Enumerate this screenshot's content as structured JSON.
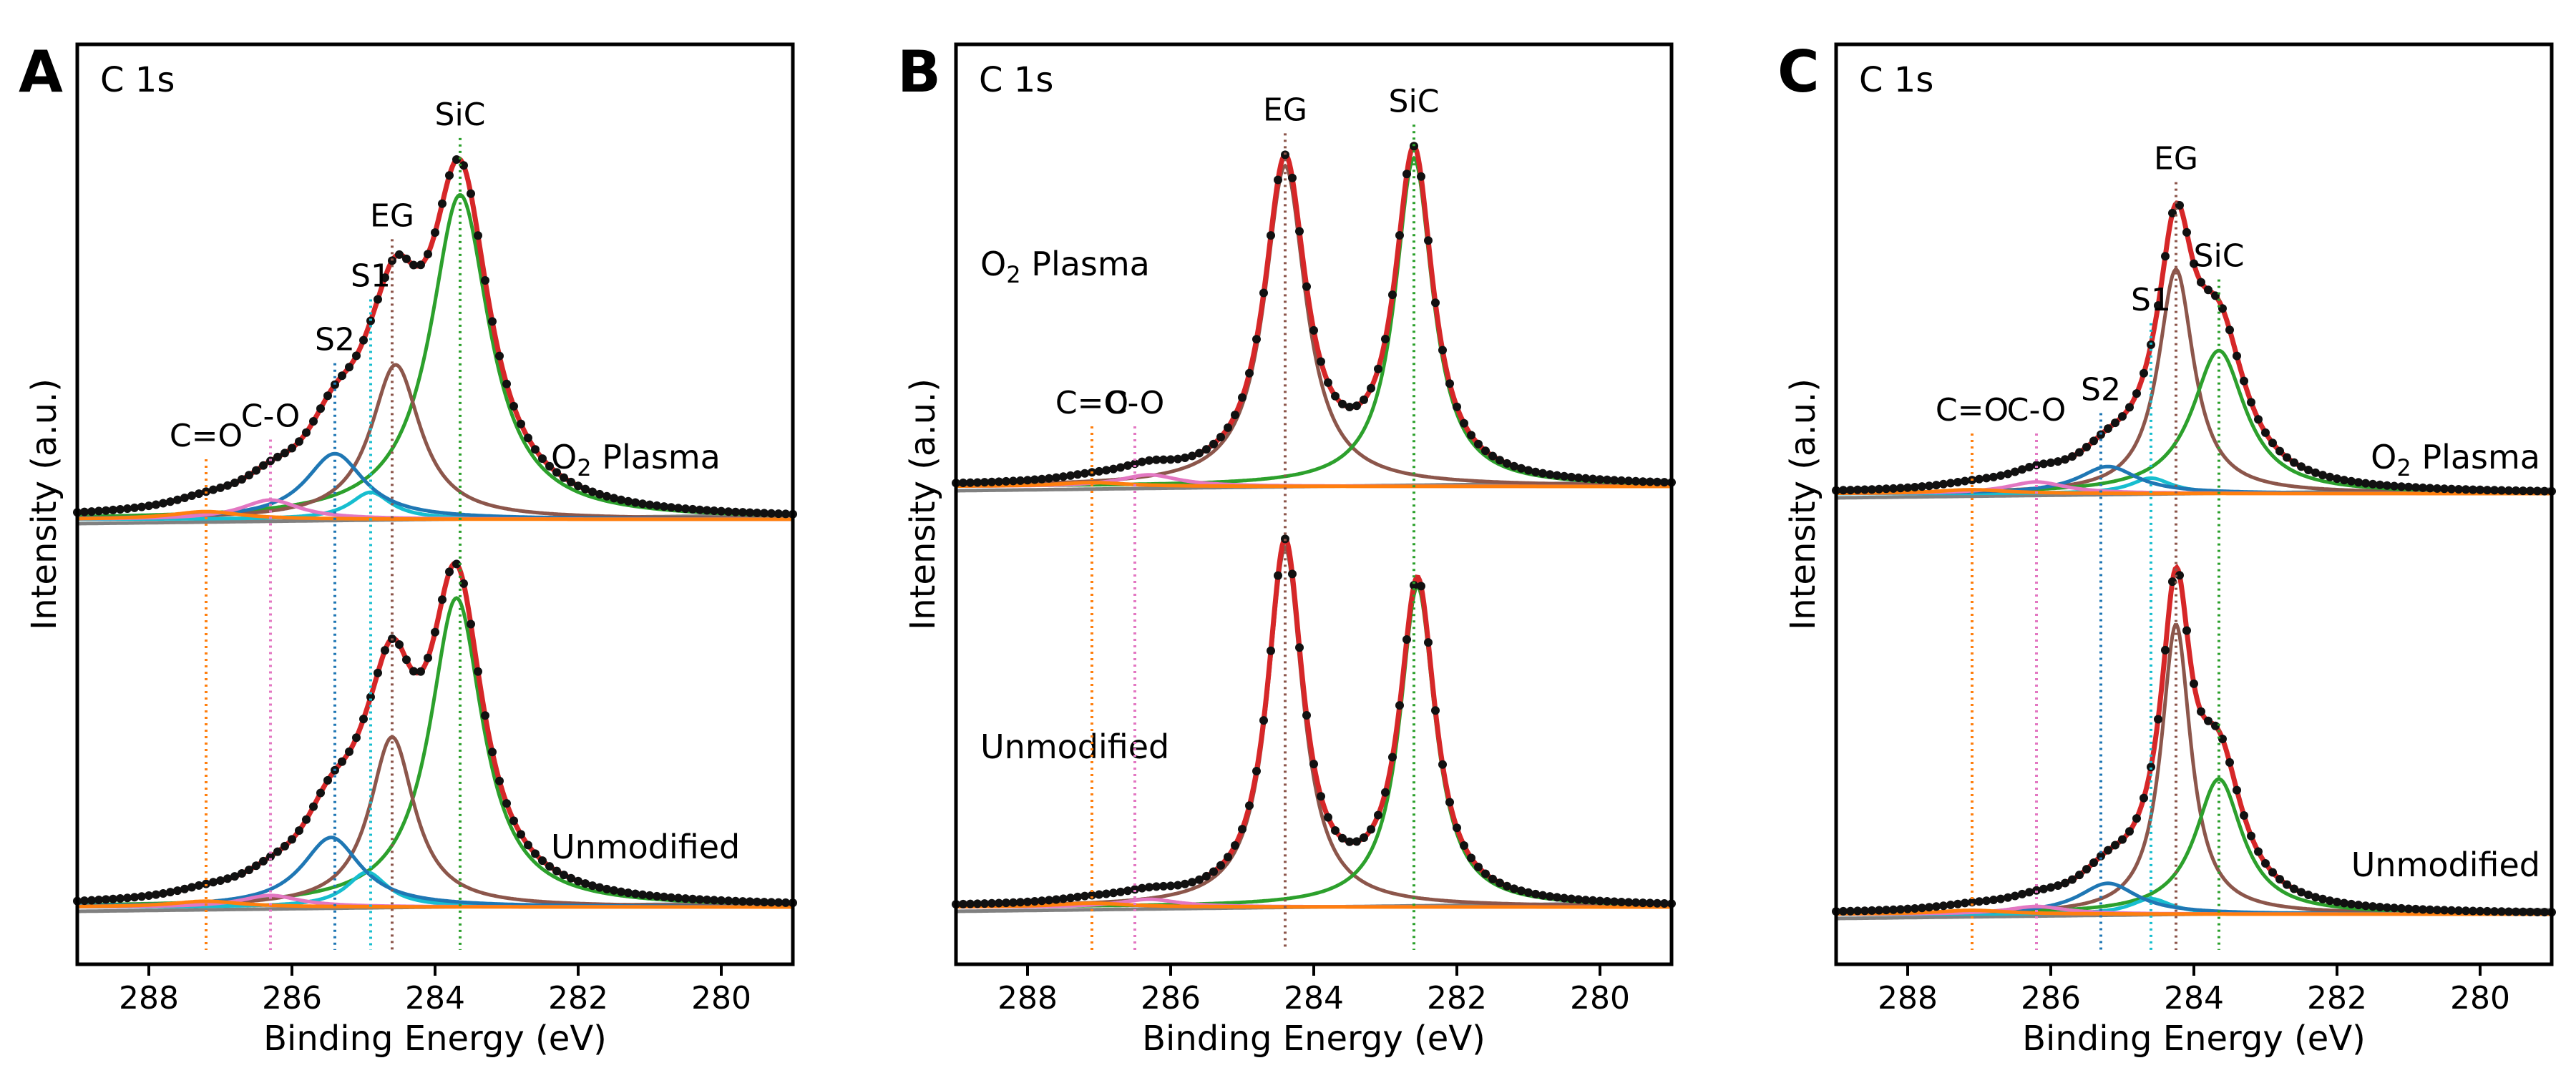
{
  "figure": {
    "x_label": "Binding Energy (eV)",
    "y_label": "Intensity (a.u.)",
    "x_ticks": [
      "288",
      "286",
      "284",
      "282",
      "280"
    ]
  },
  "chart_data": [
    {
      "type": "line",
      "panel_label": "A",
      "title": "C 1s",
      "xlabel": "Binding Energy (eV)",
      "ylabel": "Intensity (a.u.)",
      "xlim": [
        289,
        279
      ],
      "x_ticks": [
        288,
        286,
        284,
        282,
        280
      ],
      "reference_lines": [
        {
          "name": "C=O",
          "position": 287.2,
          "color": "#ff7f0e"
        },
        {
          "name": "C-O",
          "position": 286.3,
          "color": "#e377c2"
        },
        {
          "name": "S2",
          "position": 285.4,
          "color": "#1f77b4"
        },
        {
          "name": "S1",
          "position": 284.9,
          "color": "#17becf"
        },
        {
          "name": "EG",
          "position": 284.6,
          "color": "#8c564b"
        },
        {
          "name": "SiC",
          "position": 283.65,
          "color": "#2ca02c"
        }
      ],
      "spectra": [
        {
          "name": "O2 Plasma",
          "label_main": "O",
          "label_sub": "2",
          "label_tail": " Plasma",
          "components": [
            {
              "name": "SiC",
              "center": 283.65,
              "height": 0.84,
              "width": 0.5,
              "color": "#2ca02c"
            },
            {
              "name": "EG",
              "center": 284.55,
              "height": 0.4,
              "width": 0.42,
              "color": "#8c564b"
            },
            {
              "name": "S1",
              "center": 284.9,
              "height": 0.07,
              "width": 0.35,
              "color": "#17becf"
            },
            {
              "name": "S2",
              "center": 285.4,
              "height": 0.17,
              "width": 0.5,
              "color": "#1f77b4"
            },
            {
              "name": "C-O",
              "center": 286.3,
              "height": 0.05,
              "width": 0.5,
              "color": "#e377c2"
            },
            {
              "name": "C=O",
              "center": 287.2,
              "height": 0.02,
              "width": 0.6,
              "color": "#ff7f0e"
            }
          ]
        },
        {
          "name": "Unmodified",
          "label_main": "Unmodified",
          "label_sub": "",
          "label_tail": "",
          "components": [
            {
              "name": "SiC",
              "center": 283.7,
              "height": 0.8,
              "width": 0.45,
              "color": "#2ca02c"
            },
            {
              "name": "EG",
              "center": 284.6,
              "height": 0.44,
              "width": 0.38,
              "color": "#8c564b"
            },
            {
              "name": "S1",
              "center": 284.95,
              "height": 0.09,
              "width": 0.35,
              "color": "#17becf"
            },
            {
              "name": "S2",
              "center": 285.45,
              "height": 0.18,
              "width": 0.5,
              "color": "#1f77b4"
            },
            {
              "name": "C-O",
              "center": 286.3,
              "height": 0.03,
              "width": 0.5,
              "color": "#e377c2"
            },
            {
              "name": "C=O",
              "center": 287.2,
              "height": 0.015,
              "width": 0.6,
              "color": "#ff7f0e"
            }
          ]
        }
      ]
    },
    {
      "type": "line",
      "panel_label": "B",
      "title": "C 1s",
      "xlabel": "Binding Energy (eV)",
      "ylabel": "Intensity (a.u.)",
      "xlim": [
        289,
        279
      ],
      "x_ticks": [
        288,
        286,
        284,
        282,
        280
      ],
      "reference_lines": [
        {
          "name": "C=O",
          "position": 287.1,
          "color": "#ff7f0e"
        },
        {
          "name": "C-O",
          "position": 286.5,
          "color": "#e377c2"
        },
        {
          "name": "EG",
          "position": 284.4,
          "color": "#8c564b"
        },
        {
          "name": "SiC",
          "position": 282.6,
          "color": "#2ca02c"
        }
      ],
      "spectra": [
        {
          "name": "O2 Plasma",
          "label_main": "O",
          "label_sub": "2",
          "label_tail": " Plasma",
          "components": [
            {
              "name": "EG",
              "center": 284.4,
              "height": 0.83,
              "width": 0.35,
              "color": "#8c564b"
            },
            {
              "name": "SiC",
              "center": 282.6,
              "height": 0.85,
              "width": 0.32,
              "color": "#2ca02c"
            },
            {
              "name": "C-O",
              "center": 286.3,
              "height": 0.03,
              "width": 0.5,
              "color": "#e377c2"
            },
            {
              "name": "C=O",
              "center": 287.1,
              "height": 0.01,
              "width": 0.6,
              "color": "#ff7f0e"
            }
          ]
        },
        {
          "name": "Unmodified",
          "label_main": "Unmodified",
          "label_sub": "",
          "label_tail": "",
          "components": [
            {
              "name": "EG",
              "center": 284.4,
              "height": 0.93,
              "width": 0.3,
              "color": "#8c564b"
            },
            {
              "name": "SiC",
              "center": 282.55,
              "height": 0.83,
              "width": 0.3,
              "color": "#2ca02c"
            },
            {
              "name": "C-O",
              "center": 286.3,
              "height": 0.02,
              "width": 0.5,
              "color": "#e377c2"
            },
            {
              "name": "C=O",
              "center": 287.1,
              "height": 0.01,
              "width": 0.6,
              "color": "#ff7f0e"
            }
          ]
        }
      ]
    },
    {
      "type": "line",
      "panel_label": "C",
      "title": "C 1s",
      "xlabel": "Binding Energy (eV)",
      "ylabel": "Intensity (a.u.)",
      "xlim": [
        289,
        279
      ],
      "x_ticks": [
        288,
        286,
        284,
        282,
        280
      ],
      "reference_lines": [
        {
          "name": "C=O",
          "position": 287.1,
          "color": "#ff7f0e"
        },
        {
          "name": "C-O",
          "position": 286.2,
          "color": "#e377c2"
        },
        {
          "name": "S2",
          "position": 285.3,
          "color": "#1f77b4"
        },
        {
          "name": "S1",
          "position": 284.6,
          "color": "#17becf"
        },
        {
          "name": "EG",
          "position": 284.25,
          "color": "#8c564b"
        },
        {
          "name": "SiC",
          "position": 283.65,
          "color": "#2ca02c"
        }
      ],
      "spectra": [
        {
          "name": "O2 Plasma",
          "label_main": "O",
          "label_sub": "2",
          "label_tail": " Plasma",
          "components": [
            {
              "name": "EG",
              "center": 284.25,
              "height": 0.58,
              "width": 0.3,
              "color": "#8c564b"
            },
            {
              "name": "SiC",
              "center": 283.65,
              "height": 0.37,
              "width": 0.45,
              "color": "#2ca02c"
            },
            {
              "name": "S1",
              "center": 284.6,
              "height": 0.04,
              "width": 0.35,
              "color": "#17becf"
            },
            {
              "name": "S2",
              "center": 285.2,
              "height": 0.07,
              "width": 0.5,
              "color": "#1f77b4"
            },
            {
              "name": "C-O",
              "center": 286.2,
              "height": 0.03,
              "width": 0.5,
              "color": "#e377c2"
            },
            {
              "name": "C=O",
              "center": 287.1,
              "height": 0.01,
              "width": 0.6,
              "color": "#ff7f0e"
            }
          ]
        },
        {
          "name": "Unmodified",
          "label_main": "Unmodified",
          "label_sub": "",
          "label_tail": "",
          "components": [
            {
              "name": "EG",
              "center": 284.25,
              "height": 0.75,
              "width": 0.25,
              "color": "#8c564b"
            },
            {
              "name": "SiC",
              "center": 283.65,
              "height": 0.35,
              "width": 0.4,
              "color": "#2ca02c"
            },
            {
              "name": "S1",
              "center": 284.6,
              "height": 0.04,
              "width": 0.35,
              "color": "#17becf"
            },
            {
              "name": "S2",
              "center": 285.2,
              "height": 0.08,
              "width": 0.5,
              "color": "#1f77b4"
            },
            {
              "name": "C-O",
              "center": 286.2,
              "height": 0.02,
              "width": 0.5,
              "color": "#e377c2"
            },
            {
              "name": "C=O",
              "center": 287.1,
              "height": 0.01,
              "width": 0.6,
              "color": "#ff7f0e"
            }
          ]
        }
      ]
    }
  ]
}
